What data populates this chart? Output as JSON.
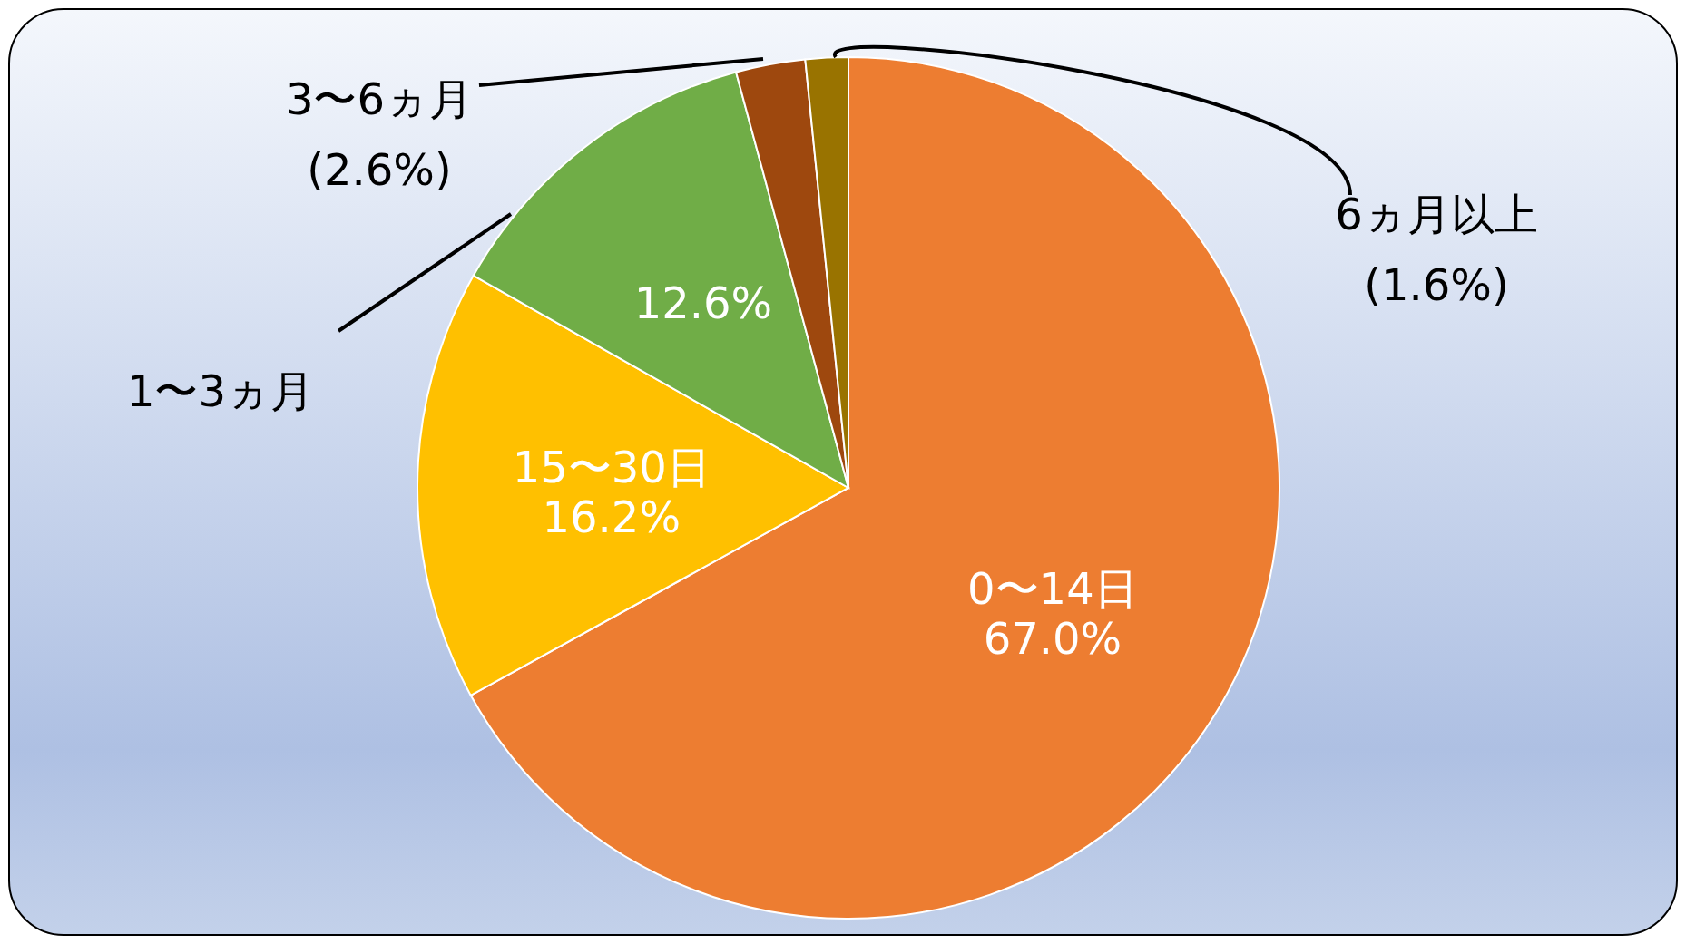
{
  "chart_data": {
    "type": "pie",
    "categories": [
      "0〜14日",
      "15〜30日",
      "1〜3ヵ月",
      "3〜6ヵ月",
      "6ヵ月以上"
    ],
    "values": [
      67.0,
      16.2,
      12.6,
      2.6,
      1.6
    ],
    "colors": [
      "#ed7d31",
      "#ffc000",
      "#70ad47",
      "#9e480e",
      "#997300"
    ],
    "value_labels": [
      "67.0%",
      "16.2%",
      "12.6%",
      "(2.6%)",
      "(1.6%)"
    ]
  }
}
